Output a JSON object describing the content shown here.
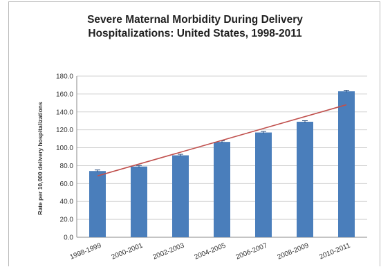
{
  "chart_data": {
    "type": "bar",
    "title_lines": [
      "Severe Maternal Morbidity During Delivery",
      "Hospitalizations: United States, 1998-2011"
    ],
    "xlabel": "",
    "ylabel": "Rate per 10,000 delivery hospitalizations",
    "categories": [
      "1998-1999",
      "2000-2001",
      "2002-2003",
      "2004-2005",
      "2006-2007",
      "2008-2009",
      "2010-2011"
    ],
    "series": [
      {
        "values": [
          74.0,
          79.0,
          91.5,
          106.5,
          117.0,
          129.0,
          163.0
        ],
        "color": "#4a7ebb"
      }
    ],
    "trendline": {
      "start": 68.5,
      "end": 148.0,
      "color": "#c0504d"
    },
    "ylim": [
      0,
      180
    ],
    "yticks": [
      "0.0",
      "20.0",
      "40.0",
      "60.0",
      "80.0",
      "100.0",
      "120.0",
      "140.0",
      "160.0",
      "180.0"
    ],
    "grid": true,
    "error_bars": true
  }
}
